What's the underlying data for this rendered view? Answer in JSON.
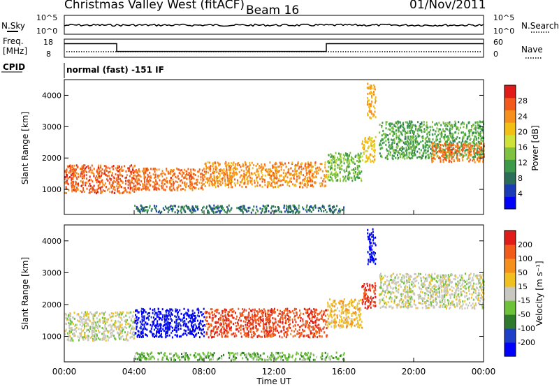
{
  "header": {
    "title": "Christmas Valley West (fitACF)",
    "beam": "Beam 16",
    "date": "01/Nov/2011",
    "nsky_label": "N.Sky",
    "nsearch_label": "N.Search",
    "freq_label": "Freq.",
    "freq_unit": "[MHz]",
    "nave_label": "Nave",
    "cpid_label": "CPID",
    "cpid_value": "normal (fast) -151 IF"
  },
  "top_panels": {
    "noise_ticks": [
      "10^5",
      "10^0"
    ],
    "freq_ticks": [
      "18",
      "8"
    ],
    "nave_ticks": [
      "60",
      "0"
    ],
    "freq_steps": [
      {
        "from": 0.0,
        "to": 3.0,
        "mhz": 16.5
      },
      {
        "from": 3.0,
        "to": 15.0,
        "mhz": 10.5
      },
      {
        "from": 15.0,
        "to": 24.0,
        "mhz": 16.5
      }
    ]
  },
  "x_axis": {
    "label": "Time UT",
    "ticks": [
      "00:00",
      "04:00",
      "08:00",
      "12:00",
      "16:00",
      "20:00",
      "00:00"
    ],
    "range_hours": [
      0,
      24
    ]
  },
  "palettes": {
    "power": [
      "#0000ff",
      "#1a3cb4",
      "#2a6e5a",
      "#3d9a4a",
      "#7fc241",
      "#cfe23a",
      "#f2c014",
      "#f5901d",
      "#f25a1c",
      "#e11a1a"
    ],
    "velocity": [
      "#0000ff",
      "#1e3fc8",
      "#2f7a2c",
      "#6dc23a",
      "#c8c8c0",
      "#f0c020",
      "#f5901d",
      "#f25a1c",
      "#e11a1a"
    ]
  },
  "chart_data": [
    {
      "type": "heatmap",
      "title": "",
      "xlabel": "",
      "ylabel": "Slant Range [km]",
      "xlim": [
        0,
        24
      ],
      "ylim": [
        200,
        4500
      ],
      "y_ticks": [
        "1000",
        "2000",
        "3000",
        "4000"
      ],
      "colorbar": {
        "label": "Power [dB]",
        "ticks": [
          "4",
          "8",
          "12",
          "16",
          "20",
          "24",
          "28"
        ],
        "range": [
          0,
          32
        ]
      },
      "echo_regions": [
        {
          "t0": 0.0,
          "t1": 4.0,
          "r0": 900,
          "r1": 1800,
          "value": 27
        },
        {
          "t0": 4.0,
          "t1": 8.0,
          "r0": 1000,
          "r1": 1700,
          "value": 26
        },
        {
          "t0": 8.0,
          "t1": 15.0,
          "r0": 1100,
          "r1": 1900,
          "value": 24
        },
        {
          "t0": 15.0,
          "t1": 17.0,
          "r0": 1300,
          "r1": 2200,
          "value": 14
        },
        {
          "t0": 17.0,
          "t1": 17.8,
          "r0": 1900,
          "r1": 2700,
          "value": 20
        },
        {
          "t0": 18.0,
          "t1": 24.0,
          "r0": 2000,
          "r1": 3200,
          "value": 12
        },
        {
          "t0": 21.0,
          "t1": 24.0,
          "r0": 1900,
          "r1": 2500,
          "value": 26
        },
        {
          "t0": 4.0,
          "t1": 16.0,
          "r0": 280,
          "r1": 520,
          "value": 8
        },
        {
          "t0": 17.3,
          "t1": 17.8,
          "r0": 3300,
          "r1": 4400,
          "value": 22
        }
      ]
    },
    {
      "type": "heatmap",
      "title": "",
      "xlabel": "Time UT",
      "ylabel": "Slant Range [km]",
      "xlim": [
        0,
        24
      ],
      "ylim": [
        200,
        4500
      ],
      "y_ticks": [
        "1000",
        "2000",
        "3000",
        "4000"
      ],
      "colorbar": {
        "label": "Velocity [m s⁻¹]",
        "ticks": [
          "200",
          "100",
          "50",
          "15",
          "-15",
          "-50",
          "-100",
          "-200"
        ],
        "range": [
          -250,
          250
        ]
      },
      "echo_regions": [
        {
          "t0": 0.0,
          "t1": 4.0,
          "r0": 900,
          "r1": 1800,
          "value": 0
        },
        {
          "t0": 4.0,
          "t1": 8.0,
          "r0": 1000,
          "r1": 1900,
          "value": -220
        },
        {
          "t0": 8.0,
          "t1": 15.0,
          "r0": 1000,
          "r1": 1900,
          "value": 180
        },
        {
          "t0": 15.0,
          "t1": 17.0,
          "r0": 1300,
          "r1": 2200,
          "value": 60
        },
        {
          "t0": 17.0,
          "t1": 17.8,
          "r0": 1900,
          "r1": 2700,
          "value": 200
        },
        {
          "t0": 18.0,
          "t1": 24.0,
          "r0": 1900,
          "r1": 3000,
          "value": 0
        },
        {
          "t0": 4.0,
          "t1": 16.0,
          "r0": 280,
          "r1": 520,
          "value": -60
        },
        {
          "t0": 17.3,
          "t1": 17.8,
          "r0": 3300,
          "r1": 4400,
          "value": -220
        }
      ]
    }
  ]
}
